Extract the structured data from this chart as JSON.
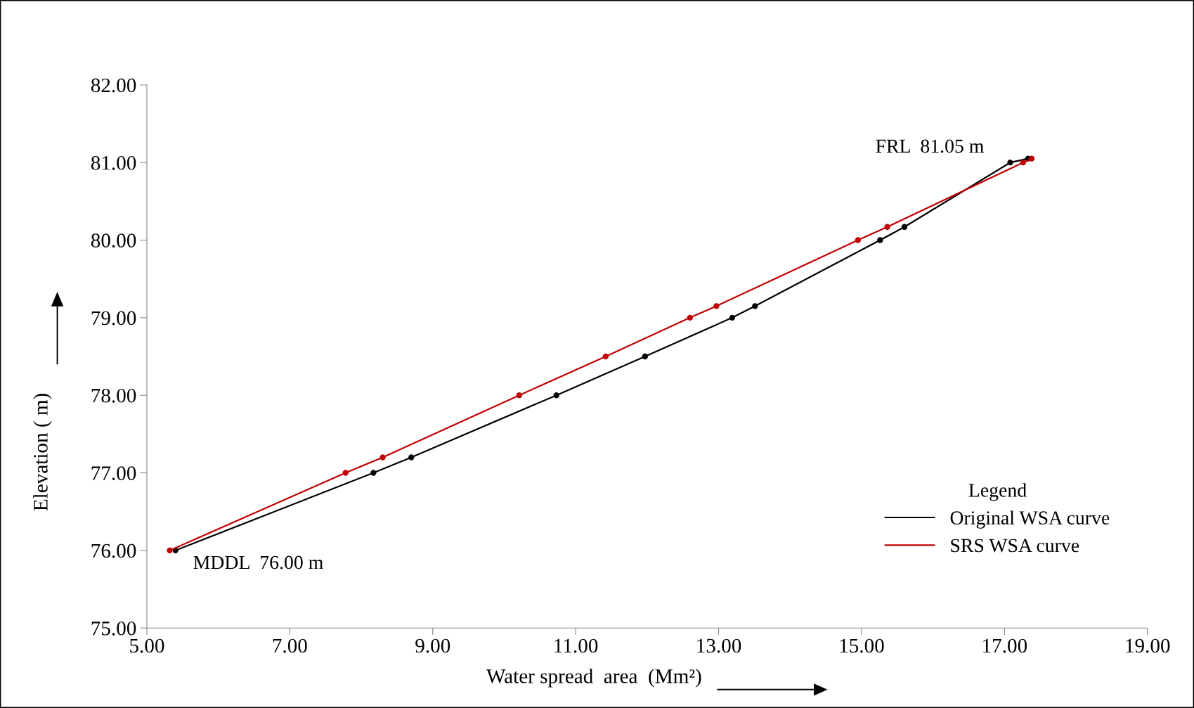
{
  "chart_data": {
    "type": "line",
    "xlabel": "Water spread  area  (Mm²)",
    "ylabel": "Elevation ( m)",
    "xlim": [
      5,
      19
    ],
    "xticks": [
      {
        "value": 5,
        "label": "5.00"
      },
      {
        "value": 7,
        "label": "7.00"
      },
      {
        "value": 9,
        "label": "9.00"
      },
      {
        "value": 11,
        "label": "11.00"
      },
      {
        "value": 13,
        "label": "13.00"
      },
      {
        "value": 15,
        "label": "15.00"
      },
      {
        "value": 17,
        "label": "17.00"
      },
      {
        "value": 19,
        "label": "19.00"
      }
    ],
    "ylim": [
      75,
      82
    ],
    "yticks": [
      {
        "value": 75,
        "label": "75.00"
      },
      {
        "value": 76,
        "label": "76.00"
      },
      {
        "value": 77,
        "label": "77.00"
      },
      {
        "value": 78,
        "label": "78.00"
      },
      {
        "value": 79,
        "label": "79.00"
      },
      {
        "value": 80,
        "label": "80.00"
      },
      {
        "value": 81,
        "label": "81.00"
      },
      {
        "value": 82,
        "label": "82.00"
      }
    ],
    "series": [
      {
        "name": "Original WSA curve",
        "color": "#000000",
        "x": [
          5.4,
          8.17,
          8.7,
          10.73,
          11.97,
          13.19,
          13.51,
          15.26,
          15.6,
          17.08,
          17.33
        ],
        "values": [
          76.0,
          77.0,
          77.2,
          78.0,
          78.5,
          79.0,
          79.15,
          80.0,
          80.17,
          81.0,
          81.05
        ]
      },
      {
        "name": "SRS WSA curve",
        "color": "#c00000",
        "x": [
          5.32,
          7.78,
          8.3,
          10.21,
          11.42,
          12.6,
          12.97,
          14.95,
          15.36,
          17.26,
          17.38
        ],
        "values": [
          76.0,
          77.0,
          77.2,
          78.0,
          78.5,
          79.0,
          79.15,
          80.0,
          80.17,
          81.0,
          81.05
        ]
      }
    ],
    "marker": "circle",
    "line_style": "solid",
    "grid": false,
    "legend": "bottom right",
    "legend_title": "Legend",
    "annotations": [
      {
        "text": "FRL  81.05 m",
        "x": 17.33,
        "y": 81.05
      },
      {
        "text": "MDDL  76.00 m",
        "x": 5.4,
        "y": 76.0
      }
    ]
  }
}
